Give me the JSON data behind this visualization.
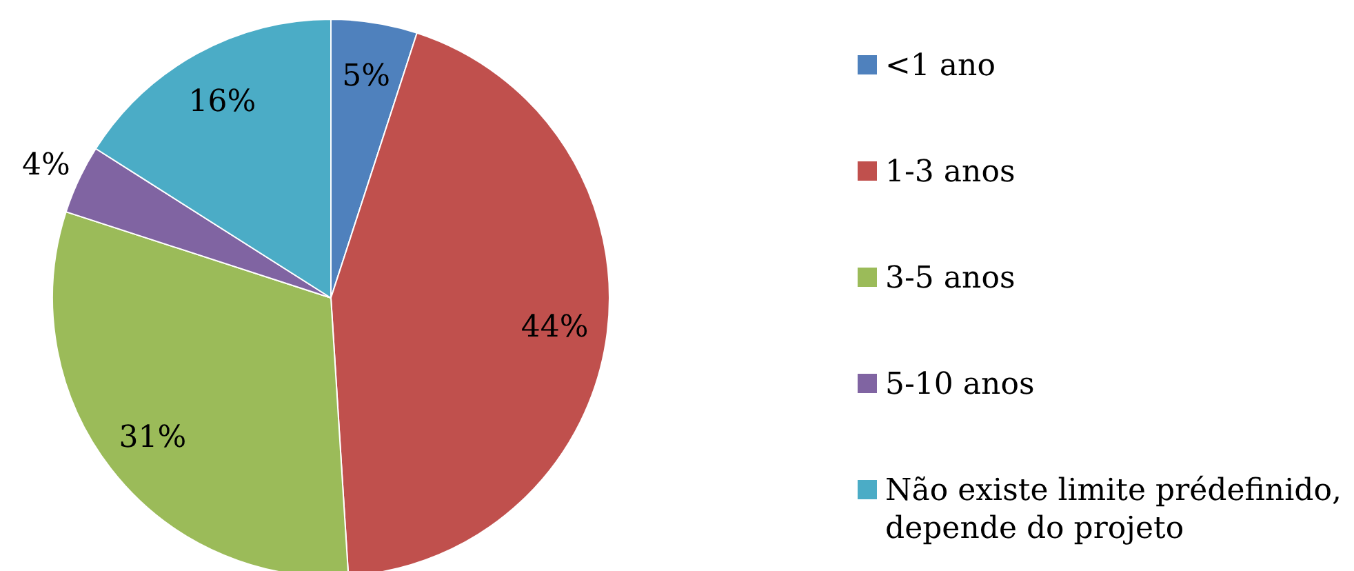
{
  "chart_data": {
    "type": "pie",
    "categories": [
      "<1 ano",
      "1-3 anos",
      "3-5 anos",
      "5-10 anos",
      "Não existe limite prédefinido, depende do projeto"
    ],
    "values": [
      5,
      44,
      31,
      4,
      16
    ],
    "colors": [
      "#4f81bd",
      "#c0504d",
      "#9bbb59",
      "#8064a2",
      "#4bacc6"
    ],
    "value_labels": [
      "5%",
      "44%",
      "31%",
      "4%",
      "16%"
    ],
    "legend": "right"
  }
}
